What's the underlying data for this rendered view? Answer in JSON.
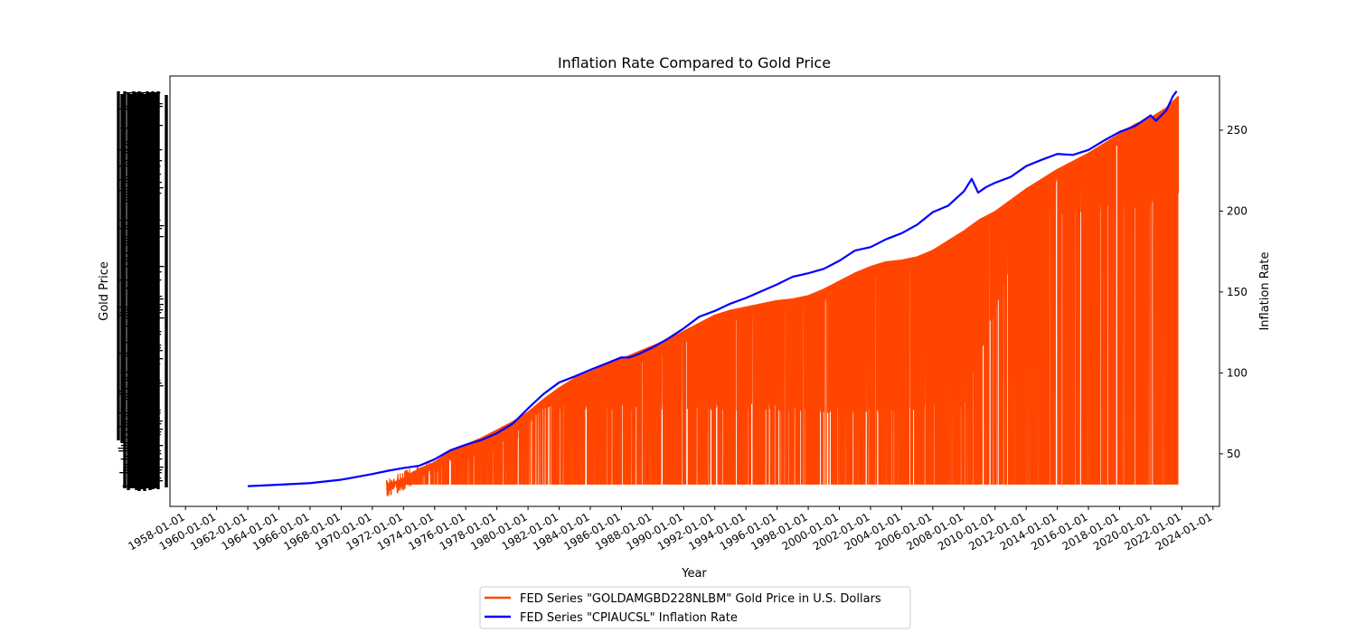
{
  "chart_data": {
    "type": "line",
    "title": "Inflation Rate Compared to Gold Price",
    "xlabel": "Year",
    "ylabel_left": "Gold Price",
    "ylabel_right": "Inflation Rate",
    "x_tick_labels": [
      "1958-01-01",
      "1960-01-01",
      "1962-01-01",
      "1964-01-01",
      "1966-01-01",
      "1968-01-01",
      "1970-01-01",
      "1972-01-01",
      "1974-01-01",
      "1976-01-01",
      "1978-01-01",
      "1980-01-01",
      "1982-01-01",
      "1984-01-01",
      "1986-01-01",
      "1988-01-01",
      "1990-01-01",
      "1992-01-01",
      "1994-01-01",
      "1996-01-01",
      "1998-01-01",
      "2000-01-01",
      "2002-01-01",
      "2004-01-01",
      "2006-01-01",
      "2008-01-01",
      "2010-01-01",
      "2012-01-01",
      "2014-01-01",
      "2016-01-01",
      "2018-01-01",
      "2020-01-01",
      "2022-01-01",
      "2024-01-01"
    ],
    "x_range": [
      "1957-01-01",
      "2024-06-01"
    ],
    "right_axis": {
      "ticks": [
        50,
        100,
        150,
        200,
        250
      ],
      "ylim": [
        17.5,
        283.5
      ]
    },
    "legend_placement": "below plot, center",
    "grid": false,
    "series": [
      {
        "name": "FED Series \"GOLDAMGBD228NLBM\" Gold Price in U.S. Dollars",
        "color": "#ff4500",
        "axis": "left",
        "drawn_against_right_scale": true,
        "upper_envelope": [
          [
            "1970-12-01",
            31
          ],
          [
            "1972-01-01",
            35
          ],
          [
            "1973-01-01",
            41
          ],
          [
            "1974-01-01",
            45
          ],
          [
            "1975-01-01",
            52
          ],
          [
            "1976-01-01",
            56
          ],
          [
            "1977-01-01",
            60
          ],
          [
            "1978-01-01",
            65
          ],
          [
            "1979-01-01",
            70
          ],
          [
            "1980-01-01",
            76
          ],
          [
            "1981-01-01",
            84
          ],
          [
            "1982-01-01",
            91
          ],
          [
            "1983-01-01",
            97
          ],
          [
            "1984-01-01",
            101
          ],
          [
            "1985-01-01",
            105
          ],
          [
            "1986-01-01",
            109
          ],
          [
            "1987-01-01",
            113
          ],
          [
            "1988-01-01",
            117
          ],
          [
            "1989-01-01",
            121
          ],
          [
            "1990-01-01",
            126
          ],
          [
            "1991-01-01",
            131
          ],
          [
            "1992-01-01",
            136
          ],
          [
            "1993-01-01",
            139
          ],
          [
            "1994-01-01",
            141
          ],
          [
            "1995-01-01",
            143
          ],
          [
            "1996-01-01",
            145
          ],
          [
            "1997-01-01",
            146
          ],
          [
            "1998-01-01",
            148
          ],
          [
            "1999-01-01",
            152
          ],
          [
            "2000-01-01",
            157
          ],
          [
            "2001-01-01",
            162
          ],
          [
            "2002-01-01",
            166
          ],
          [
            "2003-01-01",
            169
          ],
          [
            "2004-01-01",
            170
          ],
          [
            "2005-01-01",
            172
          ],
          [
            "2006-01-01",
            176
          ],
          [
            "2007-01-01",
            182
          ],
          [
            "2008-01-01",
            188
          ],
          [
            "2009-01-01",
            195
          ],
          [
            "2010-01-01",
            200
          ],
          [
            "2011-01-01",
            207
          ],
          [
            "2012-01-01",
            214
          ],
          [
            "2013-01-01",
            220
          ],
          [
            "2014-01-01",
            226
          ],
          [
            "2015-01-01",
            231
          ],
          [
            "2016-01-01",
            236
          ],
          [
            "2017-01-01",
            242
          ],
          [
            "2018-01-01",
            248
          ],
          [
            "2019-01-01",
            254
          ],
          [
            "2020-01-01",
            258
          ],
          [
            "2021-01-01",
            264
          ],
          [
            "2021-10-01",
            271
          ]
        ],
        "lower_envelope": 31,
        "dip_floor": [
          [
            "1971-01-01",
            31
          ],
          [
            "1975-01-01",
            45
          ],
          [
            "1977-01-01",
            48
          ],
          [
            "1979-01-01",
            55
          ],
          [
            "1981-01-01",
            78
          ],
          [
            "1984-01-01",
            76
          ],
          [
            "1990-01-01",
            77
          ],
          [
            "2000-01-01",
            75
          ],
          [
            "2004-01-01",
            75
          ],
          [
            "2008-01-01",
            79
          ],
          [
            "2012-01-01",
            195
          ],
          [
            "2020-01-01",
            203
          ]
        ]
      },
      {
        "name": "FED Series \"CPIAUCSL\" Inflation Rate",
        "color": "#0000ff",
        "axis": "right",
        "points": [
          [
            "1962-01-01",
            30
          ],
          [
            "1964-01-01",
            30.9
          ],
          [
            "1966-01-01",
            31.9
          ],
          [
            "1968-01-01",
            34
          ],
          [
            "1970-01-01",
            37.5
          ],
          [
            "1971-01-01",
            39.5
          ],
          [
            "1972-01-01",
            41.2
          ],
          [
            "1973-01-01",
            42.6
          ],
          [
            "1974-01-01",
            46.6
          ],
          [
            "1975-01-01",
            52.1
          ],
          [
            "1976-01-01",
            55.6
          ],
          [
            "1977-01-01",
            58.5
          ],
          [
            "1978-01-01",
            62.7
          ],
          [
            "1979-01-01",
            68.5
          ],
          [
            "1980-01-01",
            78
          ],
          [
            "1981-01-01",
            87
          ],
          [
            "1982-01-01",
            94.1
          ],
          [
            "1983-01-01",
            97.8
          ],
          [
            "1984-01-01",
            101.9
          ],
          [
            "1985-01-01",
            105.7
          ],
          [
            "1986-01-01",
            109.6
          ],
          [
            "1986-07-01",
            109.5
          ],
          [
            "1987-01-01",
            111.2
          ],
          [
            "1988-01-01",
            115.7
          ],
          [
            "1989-01-01",
            121.2
          ],
          [
            "1990-01-01",
            127.5
          ],
          [
            "1991-01-01",
            134.7
          ],
          [
            "1992-01-01",
            138.3
          ],
          [
            "1993-01-01",
            142.8
          ],
          [
            "1994-01-01",
            146.3
          ],
          [
            "1995-01-01",
            150.5
          ],
          [
            "1996-01-01",
            154.7
          ],
          [
            "1997-01-01",
            159.4
          ],
          [
            "1998-01-01",
            161.6
          ],
          [
            "1999-01-01",
            164.3
          ],
          [
            "2000-01-01",
            169.3
          ],
          [
            "2001-01-01",
            175.6
          ],
          [
            "2002-01-01",
            177.7
          ],
          [
            "2003-01-01",
            182.6
          ],
          [
            "2004-01-01",
            186.3
          ],
          [
            "2005-01-01",
            191.6
          ],
          [
            "2006-01-01",
            199.3
          ],
          [
            "2007-01-01",
            203.4
          ],
          [
            "2008-01-01",
            212.2
          ],
          [
            "2008-07-01",
            219.9
          ],
          [
            "2008-12-01",
            211.4
          ],
          [
            "2009-06-01",
            214.8
          ],
          [
            "2010-01-01",
            217.5
          ],
          [
            "2011-01-01",
            221.1
          ],
          [
            "2012-01-01",
            227.8
          ],
          [
            "2013-01-01",
            231.7
          ],
          [
            "2014-01-01",
            235.3
          ],
          [
            "2015-01-01",
            234.7
          ],
          [
            "2016-01-01",
            237.8
          ],
          [
            "2017-01-01",
            243.6
          ],
          [
            "2018-01-01",
            248.9
          ],
          [
            "2019-01-01",
            252.6
          ],
          [
            "2020-01-01",
            259.1
          ],
          [
            "2020-05-01",
            255.8
          ],
          [
            "2021-01-01",
            262.2
          ],
          [
            "2021-06-01",
            270.9
          ],
          [
            "2021-09-01",
            274.1
          ]
        ]
      }
    ],
    "left_axis_scribble": {
      "label": "overlapping gold price tick labels rendered as a dense black band",
      "color": "#000000"
    }
  },
  "legend": {
    "items": [
      {
        "label": "FED Series \"GOLDAMGBD228NLBM\" Gold Price in U.S. Dollars",
        "color": "#ff4500"
      },
      {
        "label": "FED Series \"CPIAUCSL\" Inflation Rate",
        "color": "#0000ff"
      }
    ]
  }
}
